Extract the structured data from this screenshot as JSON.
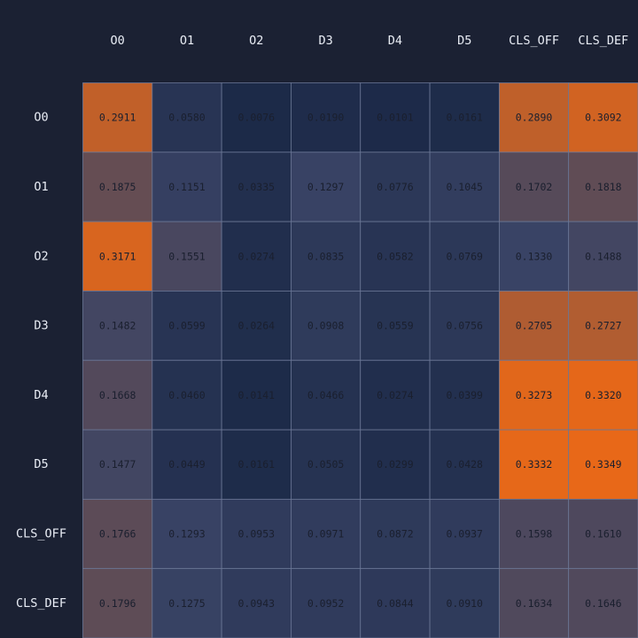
{
  "chart_data": {
    "type": "heatmap",
    "columns": [
      "O0",
      "O1",
      "O2",
      "D3",
      "D4",
      "D5",
      "CLS_OFF",
      "CLS_DEF"
    ],
    "rows": [
      "O0",
      "O1",
      "O2",
      "D3",
      "D4",
      "D5",
      "CLS_OFF",
      "CLS_DEF"
    ],
    "values": [
      [
        0.2911,
        0.058,
        0.0076,
        0.019,
        0.0101,
        0.0161,
        0.289,
        0.3092
      ],
      [
        0.1875,
        0.1151,
        0.0335,
        0.1297,
        0.0776,
        0.1045,
        0.1702,
        0.1818
      ],
      [
        0.3171,
        0.1551,
        0.0274,
        0.0835,
        0.0582,
        0.0769,
        0.133,
        0.1488
      ],
      [
        0.1482,
        0.0599,
        0.0264,
        0.0908,
        0.0559,
        0.0756,
        0.2705,
        0.2727
      ],
      [
        0.1668,
        0.046,
        0.0141,
        0.0466,
        0.0274,
        0.0399,
        0.3273,
        0.332
      ],
      [
        0.1477,
        0.0449,
        0.0161,
        0.0505,
        0.0299,
        0.0428,
        0.3332,
        0.3349
      ],
      [
        0.1766,
        0.1293,
        0.0953,
        0.0971,
        0.0872,
        0.0937,
        0.1598,
        0.161
      ],
      [
        0.1796,
        0.1275,
        0.0943,
        0.0952,
        0.0844,
        0.091,
        0.1634,
        0.1646
      ]
    ],
    "value_format": "0.0000",
    "color_scale": {
      "low": "#1c2a48",
      "mid": "#3a4466",
      "high": "#e86818"
    },
    "title": "",
    "xlabel": "",
    "ylabel": "",
    "legend": "none",
    "grid": true
  },
  "colors": {
    "background": "#1b2133",
    "label_text": "#e9edf5",
    "cell_text": "#1a1f2e",
    "grid_line": "#6b7796"
  }
}
